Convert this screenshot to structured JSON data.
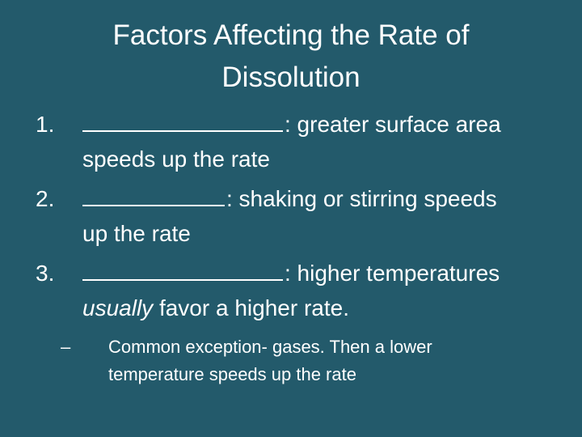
{
  "slide": {
    "title": "Factors Affecting the Rate of Dissolution",
    "items": [
      {
        "number": "1.",
        "text_line1": ": greater surface area",
        "text_line2": "speeds up the rate"
      },
      {
        "number": "2.",
        "text_line1": ": shaking or stirring speeds",
        "text_line2": "up the rate"
      },
      {
        "number": "3.",
        "text_line1": ": higher temperatures",
        "text_emphasis": "usually",
        "text_line2_rest": " favor a higher rate."
      }
    ],
    "sub_item": {
      "bullet": "–",
      "text": "Common exception- gases.  Then a lower temperature speeds up the rate"
    }
  }
}
